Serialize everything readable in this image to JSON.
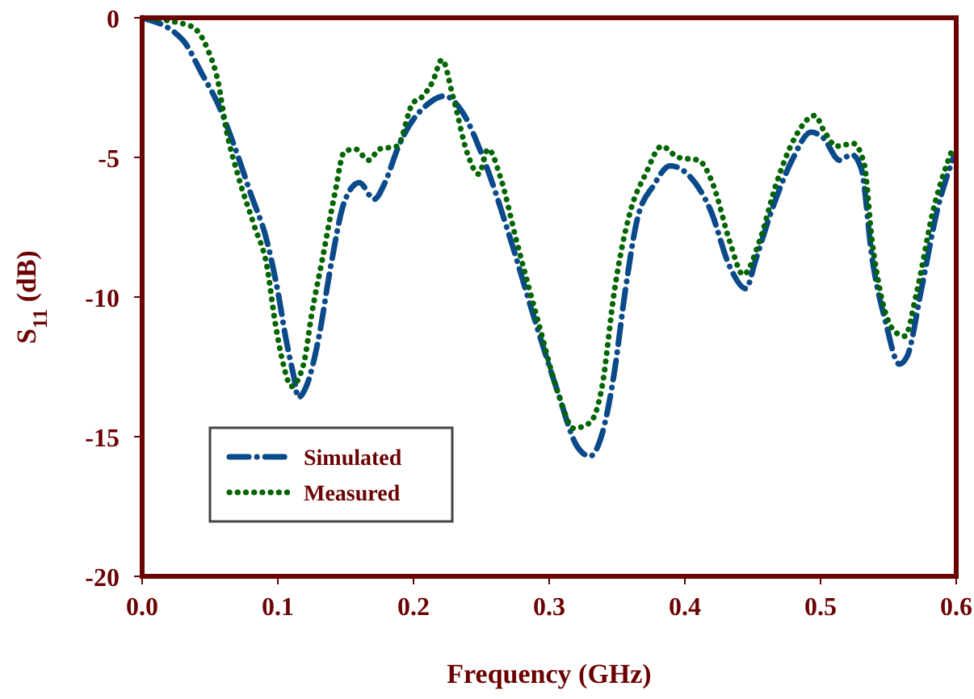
{
  "chart_data": {
    "type": "line",
    "xlabel": "Frequency (GHz)",
    "ylabel": "S$_{11}$ (dB)",
    "xlim": [
      0,
      0.6
    ],
    "ylim": [
      -20,
      0
    ],
    "xticks": [
      {
        "value": 0,
        "label": "0.0"
      },
      0.1,
      0.2,
      0.3,
      0.4,
      0.5,
      0.6
    ],
    "yticks": [
      -20,
      -15,
      -10,
      -5,
      0
    ],
    "grid": false,
    "legend": "bottom left",
    "series": [
      {
        "name": "Simulated",
        "color": "#0a4a8a",
        "line_style": "dashdot",
        "x": [
          0,
          0.03,
          0.044,
          0.056,
          0.068,
          0.08,
          0.092,
          0.1,
          0.106,
          0.112,
          0.115,
          0.121,
          0.13,
          0.139,
          0.149,
          0.16,
          0.171,
          0.179,
          0.189,
          0.199,
          0.208,
          0.223,
          0.235,
          0.252,
          0.27,
          0.288,
          0.307,
          0.32,
          0.33,
          0.339,
          0.348,
          0.356,
          0.365,
          0.377,
          0.389,
          0.404,
          0.419,
          0.433,
          0.445,
          0.452,
          0.464,
          0.479,
          0.493,
          0.502,
          0.514,
          0.523,
          0.53,
          0.538,
          0.548,
          0.558,
          0.564,
          0.574,
          0.586,
          0.598
        ],
        "values": [
          0,
          -0.8,
          -2.0,
          -3.1,
          -4.6,
          -6.3,
          -8.0,
          -9.8,
          -11.5,
          -12.9,
          -13.6,
          -13.2,
          -11.5,
          -8.9,
          -6.6,
          -5.9,
          -6.5,
          -5.9,
          -4.6,
          -3.7,
          -3.2,
          -2.8,
          -3.3,
          -5.1,
          -7.7,
          -10.6,
          -13.5,
          -15.3,
          -15.7,
          -14.9,
          -12.7,
          -9.8,
          -7.2,
          -6.0,
          -5.3,
          -5.7,
          -6.9,
          -8.9,
          -9.7,
          -8.7,
          -6.9,
          -5.1,
          -4.1,
          -4.3,
          -5.1,
          -4.9,
          -5.4,
          -8.6,
          -10.9,
          -12.4,
          -12.1,
          -9.8,
          -6.9,
          -5.0
        ]
      },
      {
        "name": "Measured",
        "color": "#006400",
        "line_style": "dotted",
        "x": [
          0,
          0.036,
          0.048,
          0.056,
          0.062,
          0.071,
          0.083,
          0.092,
          0.098,
          0.104,
          0.11,
          0.119,
          0.125,
          0.133,
          0.142,
          0.149,
          0.157,
          0.167,
          0.175,
          0.188,
          0.199,
          0.207,
          0.214,
          0.221,
          0.229,
          0.24,
          0.248,
          0.255,
          0.264,
          0.276,
          0.292,
          0.307,
          0.318,
          0.33,
          0.339,
          0.348,
          0.36,
          0.371,
          0.383,
          0.395,
          0.41,
          0.421,
          0.433,
          0.443,
          0.455,
          0.467,
          0.481,
          0.496,
          0.502,
          0.512,
          0.524,
          0.532,
          0.538,
          0.544,
          0.554,
          0.562,
          0.571,
          0.583,
          0.598
        ],
        "values": [
          0,
          -0.3,
          -1.1,
          -2.3,
          -4.0,
          -5.7,
          -7.5,
          -8.9,
          -10.9,
          -12.4,
          -13.2,
          -12.4,
          -10.6,
          -8.6,
          -6.3,
          -4.8,
          -4.7,
          -5.1,
          -4.7,
          -4.6,
          -3.1,
          -2.8,
          -2.3,
          -1.5,
          -2.8,
          -4.9,
          -5.6,
          -4.7,
          -5.7,
          -8.0,
          -10.9,
          -13.5,
          -14.7,
          -14.5,
          -13.2,
          -9.8,
          -6.9,
          -5.6,
          -4.6,
          -5.0,
          -5.1,
          -6.0,
          -8.0,
          -9.2,
          -8.0,
          -6.0,
          -4.3,
          -3.5,
          -4.0,
          -4.6,
          -4.5,
          -5.2,
          -8.0,
          -9.8,
          -11.2,
          -11.4,
          -9.8,
          -6.9,
          -4.6
        ]
      }
    ]
  }
}
